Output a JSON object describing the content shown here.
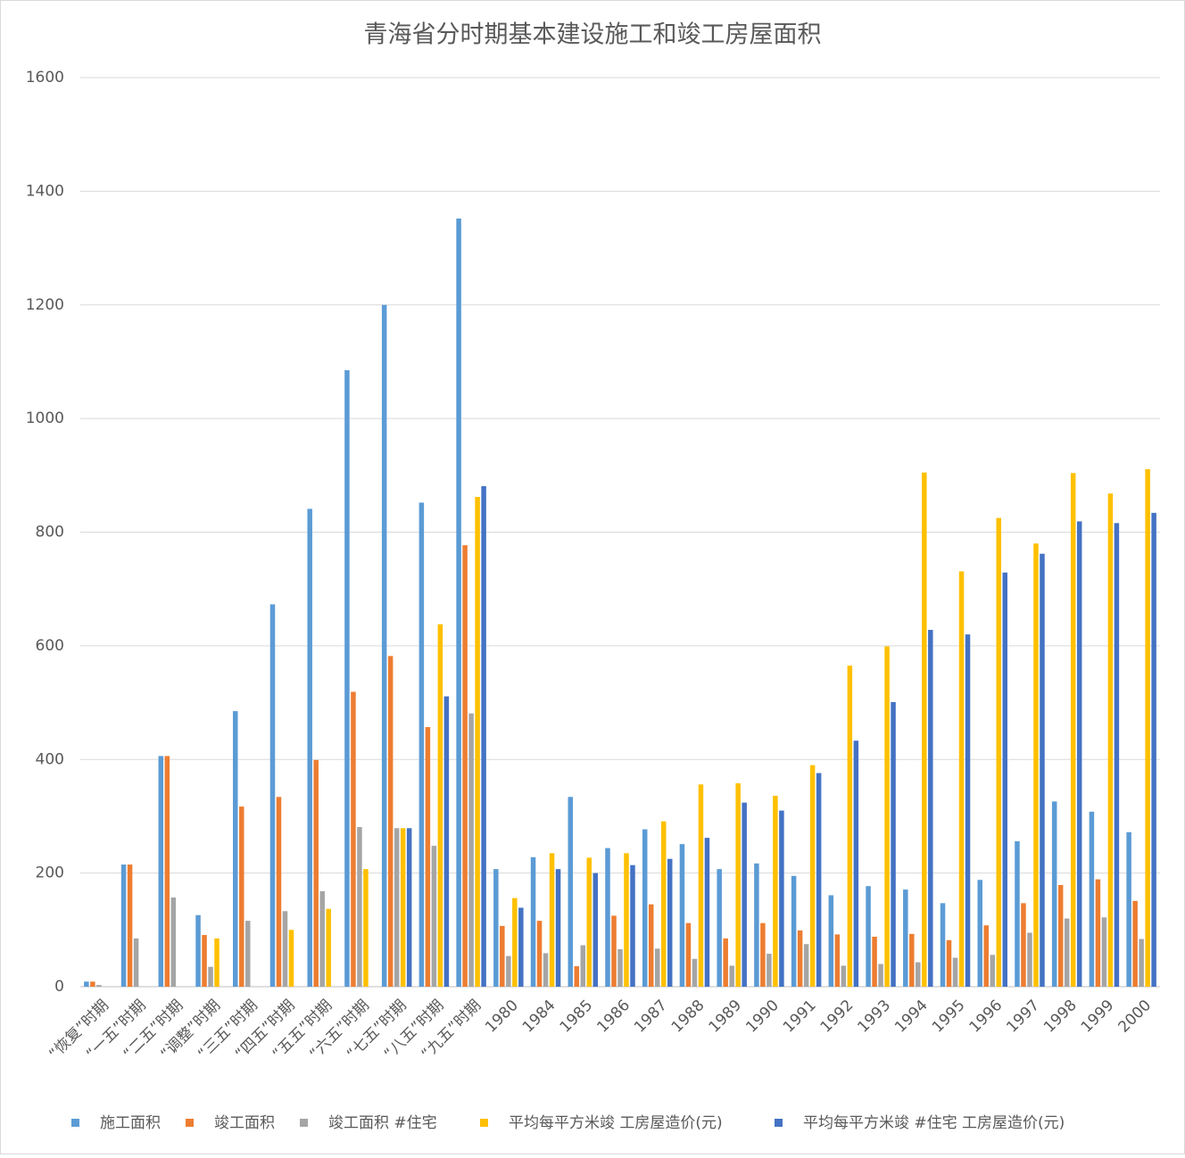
{
  "chart_data": {
    "type": "bar",
    "title": "青海省分时期基本建设施工和竣工房屋面积",
    "categories": [
      "“恢复”时期",
      "“一五”时期",
      "“二五”时期",
      "“调整”时期",
      "“三五”时期",
      "“四五”时期",
      "“五五”时期",
      "“六五”时期",
      "“七五”时期",
      "“八五”时期",
      "“九五”时期",
      "1980",
      "1984",
      "1985",
      "1986",
      "1987",
      "1988",
      "1989",
      "1990",
      "1991",
      "1992",
      "1993",
      "1994",
      "1995",
      "1996",
      "1997",
      "1998",
      "1999",
      "2000"
    ],
    "series": [
      {
        "name": "施工面积",
        "color": "#5b9bd5",
        "values": [
          9,
          215,
          406,
          126,
          485,
          673,
          841,
          1085,
          1200,
          852,
          1352,
          207,
          228,
          334,
          244,
          277,
          251,
          207,
          217,
          195,
          161,
          177,
          171,
          147,
          188,
          256,
          326,
          308,
          272
        ]
      },
      {
        "name": "竣工面积",
        "color": "#ed7d31",
        "values": [
          9,
          215,
          406,
          91,
          317,
          334,
          399,
          519,
          582,
          457,
          777,
          107,
          116,
          36,
          125,
          145,
          112,
          85,
          112,
          99,
          92,
          88,
          93,
          82,
          108,
          147,
          179,
          189,
          151
        ]
      },
      {
        "name": "竣工面积 #住宅",
        "color": "#a5a5a5",
        "values": [
          3,
          85,
          157,
          35,
          116,
          133,
          168,
          281,
          279,
          248,
          481,
          54,
          59,
          73,
          66,
          67,
          49,
          37,
          58,
          75,
          37,
          40,
          43,
          51,
          56,
          95,
          120,
          122,
          84
        ]
      },
      {
        "name": "平均每平方米竣 工房屋造价(元)",
        "color": "#ffc000",
        "values": [
          null,
          null,
          null,
          85,
          null,
          100,
          137,
          207,
          279,
          638,
          862,
          156,
          235,
          227,
          235,
          291,
          356,
          358,
          336,
          390,
          565,
          599,
          905,
          731,
          825,
          780,
          904,
          868,
          911
        ]
      },
      {
        "name": "平均每平方米竣 #住宅 工房屋造价(元)",
        "color": "#4472c4",
        "values": [
          null,
          null,
          null,
          null,
          null,
          null,
          null,
          null,
          279,
          511,
          881,
          139,
          207,
          200,
          214,
          225,
          262,
          324,
          310,
          376,
          433,
          501,
          628,
          620,
          729,
          762,
          819,
          816,
          834
        ]
      }
    ],
    "ylim": [
      0,
      1600
    ],
    "yticks": [
      0,
      200,
      400,
      600,
      800,
      1000,
      1200,
      1400,
      1600
    ],
    "grid": true,
    "legend": "bottom"
  }
}
